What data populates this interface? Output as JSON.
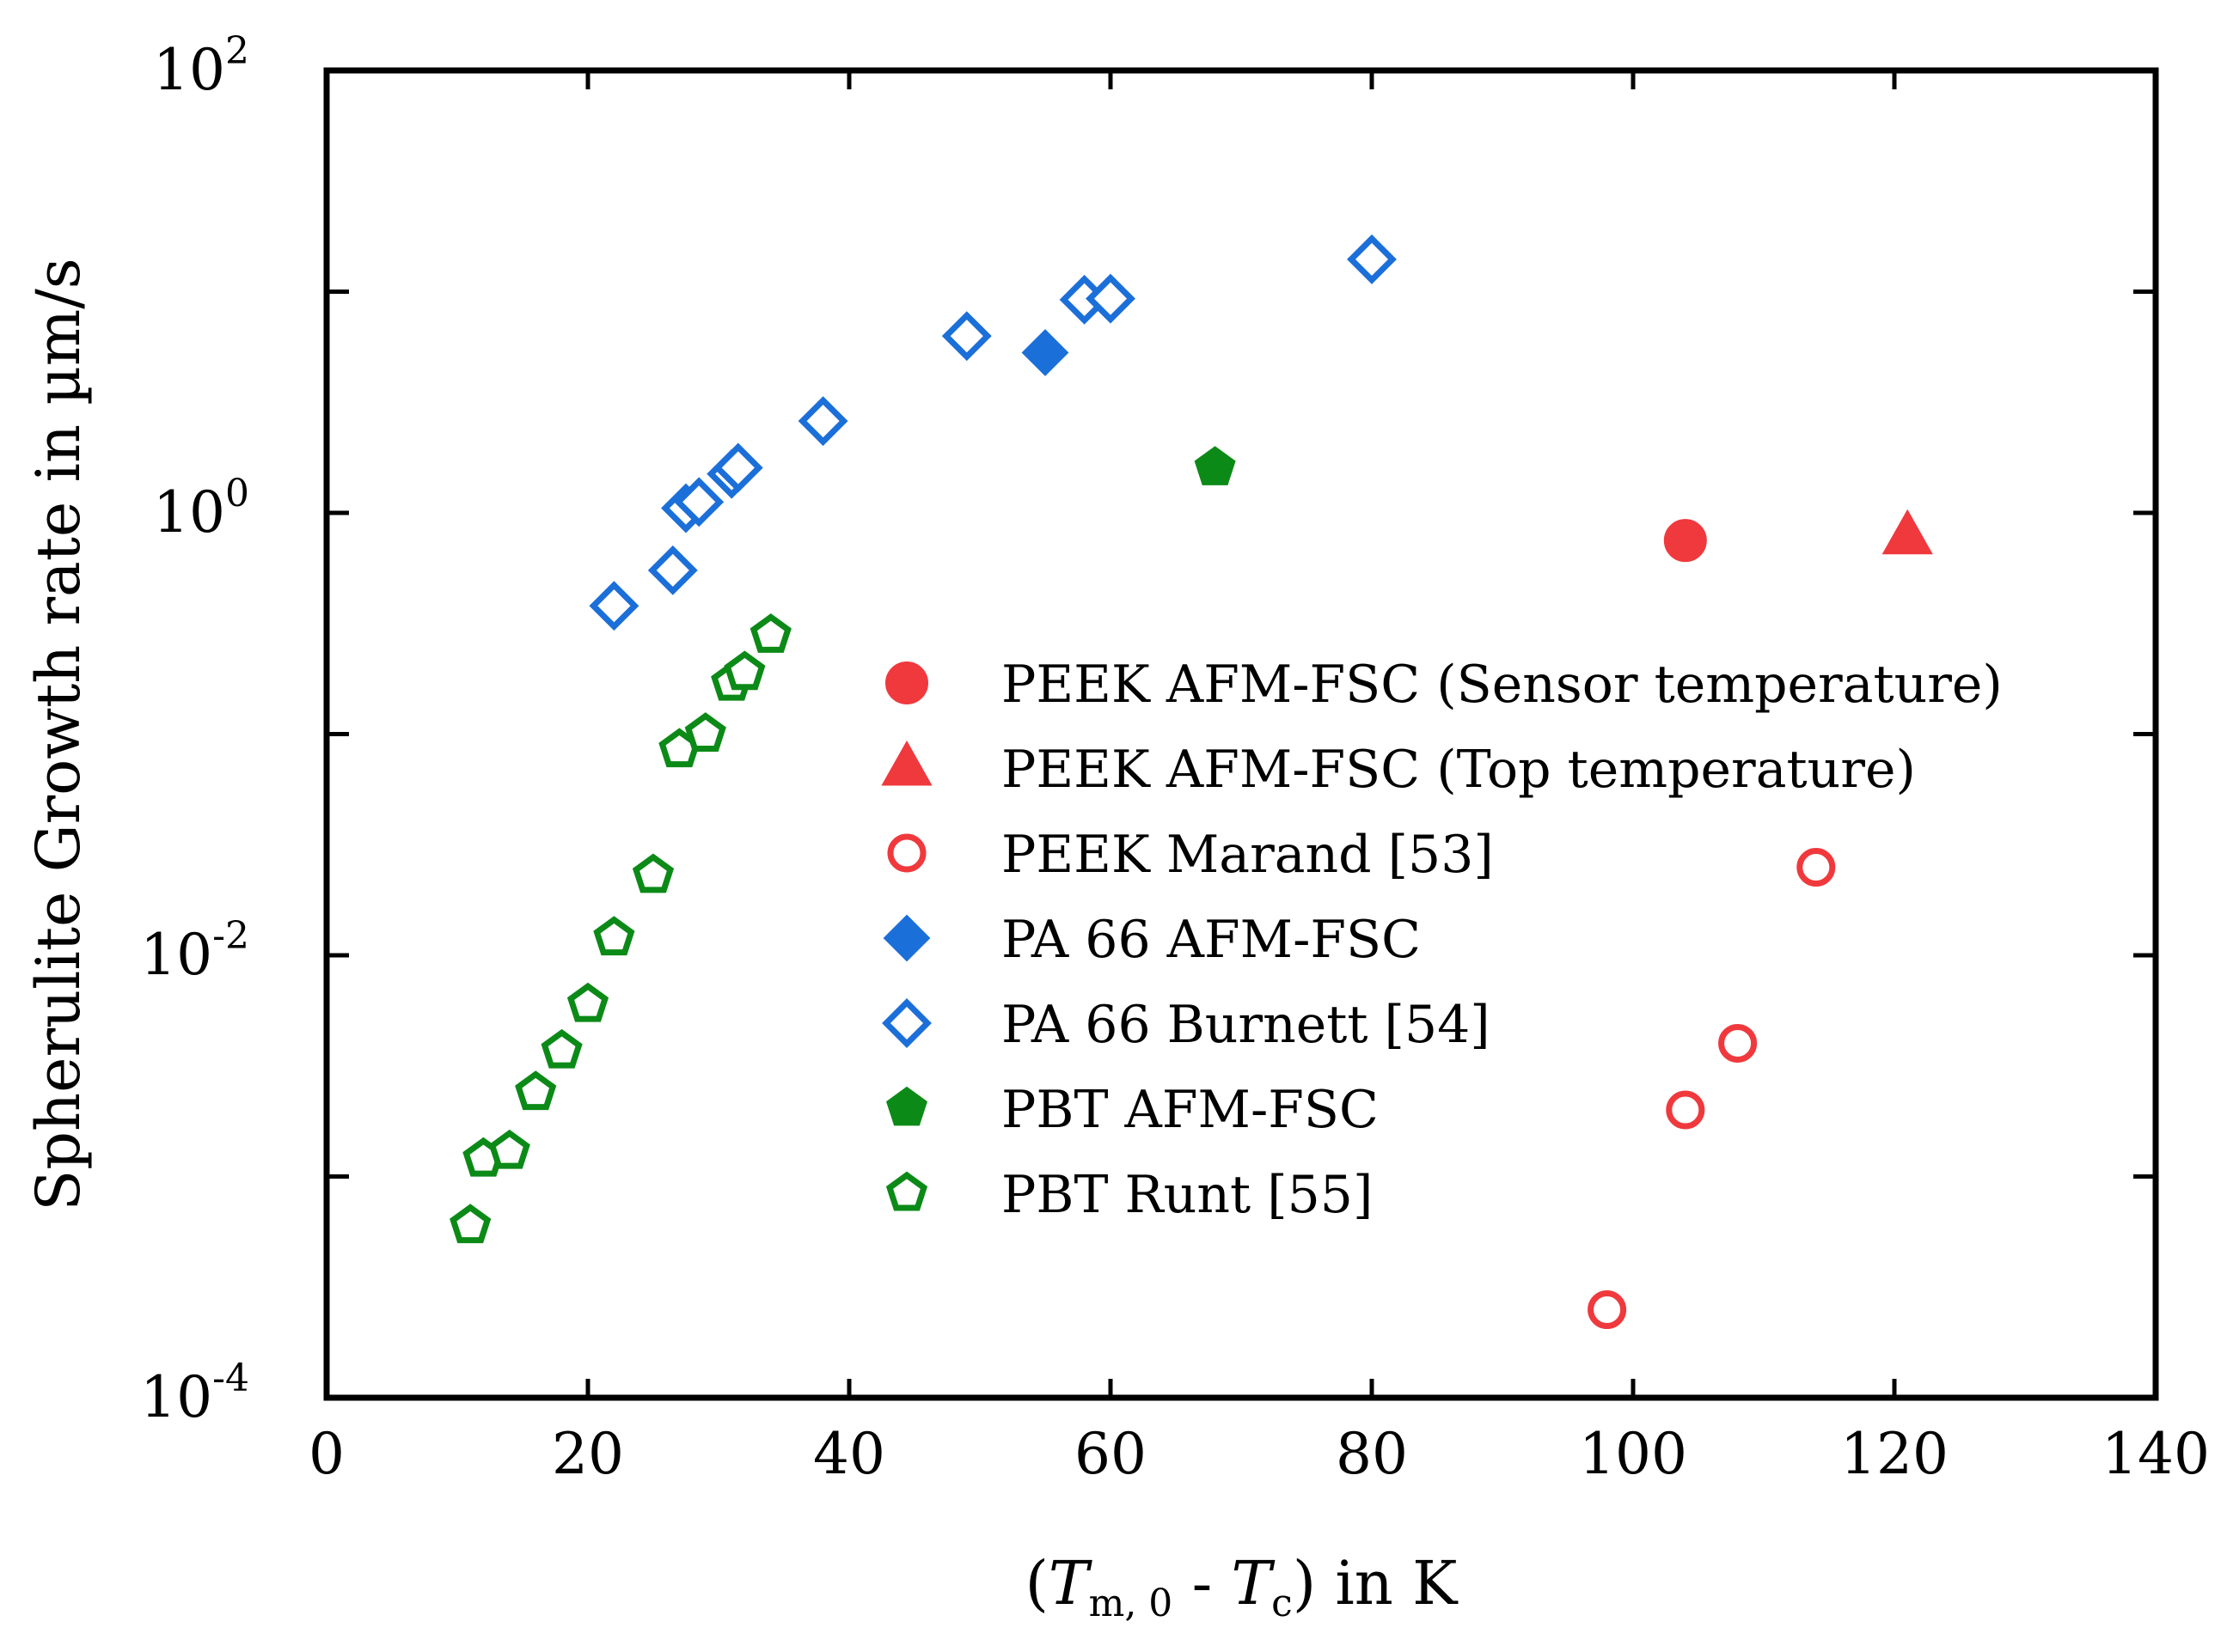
{
  "chart_data": {
    "type": "scatter",
    "xlabel": {
      "open": "(",
      "t1": "T",
      "sub1": "m, 0",
      "mid": " - ",
      "t2": "T",
      "sub2": "c",
      "close": ") in K"
    },
    "ylabel": "Spherulite Growth rate in µm/s",
    "xlim": [
      0,
      140
    ],
    "ylog_exp_range": [
      -4,
      2
    ],
    "x_ticks": [
      {
        "value": 0,
        "label": "0"
      },
      {
        "value": 20,
        "label": "20"
      },
      {
        "value": 40,
        "label": "40"
      },
      {
        "value": 60,
        "label": "60"
      },
      {
        "value": 80,
        "label": "80"
      },
      {
        "value": 100,
        "label": "100"
      },
      {
        "value": 120,
        "label": "120"
      },
      {
        "value": 140,
        "label": "140"
      }
    ],
    "y_ticks": [
      {
        "value": 0.0001,
        "base": "10",
        "exp": "-4"
      },
      {
        "value": 0.01,
        "base": "10",
        "exp": "-2"
      },
      {
        "value": 1,
        "base": "10",
        "exp": "0"
      },
      {
        "value": 100,
        "base": "10",
        "exp": "2"
      }
    ],
    "y_minor_ticks": [
      0.001,
      0.1,
      10
    ],
    "legend_position": "center-right",
    "series": [
      {
        "name": "PEEK AFM-FSC (Sensor temperature)",
        "marker": "circle",
        "filled": true,
        "color": "#f0393d",
        "points": [
          [
            104,
            0.75
          ]
        ]
      },
      {
        "name": "PEEK AFM-FSC (Top temperature)",
        "marker": "triangle",
        "filled": true,
        "color": "#f0393d",
        "points": [
          [
            121,
            0.78
          ]
        ]
      },
      {
        "name": "PEEK Marand [53]",
        "marker": "circle",
        "filled": false,
        "color": "#f0393d",
        "points": [
          [
            98,
            0.00025
          ],
          [
            104,
            0.002
          ],
          [
            108,
            0.004
          ],
          [
            114,
            0.025
          ]
        ]
      },
      {
        "name": "PA 66 AFM-FSC",
        "marker": "diamond",
        "filled": true,
        "color": "#1b6fd9",
        "points": [
          [
            55,
            5.3
          ]
        ]
      },
      {
        "name": "PA 66 Burnett [54]",
        "marker": "diamond",
        "filled": false,
        "color": "#1b6fd9",
        "points": [
          [
            22,
            0.38
          ],
          [
            26.5,
            0.55
          ],
          [
            27.5,
            1.05
          ],
          [
            28.5,
            1.12
          ],
          [
            31,
            1.5
          ],
          [
            31.5,
            1.6
          ],
          [
            38,
            2.6
          ],
          [
            49,
            6.3
          ],
          [
            58,
            9.2
          ],
          [
            60,
            9.3
          ],
          [
            80,
            14.0
          ]
        ]
      },
      {
        "name": "PBT AFM-FSC",
        "marker": "pentagon",
        "filled": true,
        "color": "#0c8a17",
        "points": [
          [
            68,
            1.6
          ]
        ]
      },
      {
        "name": "PBT Runt [55]",
        "marker": "pentagon",
        "filled": false,
        "color": "#0c8a17",
        "points": [
          [
            11,
            0.0006
          ],
          [
            12,
            0.0012
          ],
          [
            14,
            0.0013
          ],
          [
            16,
            0.0024
          ],
          [
            18,
            0.0037
          ],
          [
            20,
            0.006
          ],
          [
            22,
            0.012
          ],
          [
            25,
            0.023
          ],
          [
            27,
            0.085
          ],
          [
            29,
            0.1
          ],
          [
            31,
            0.17
          ],
          [
            32,
            0.19
          ],
          [
            34,
            0.28
          ]
        ]
      }
    ]
  }
}
